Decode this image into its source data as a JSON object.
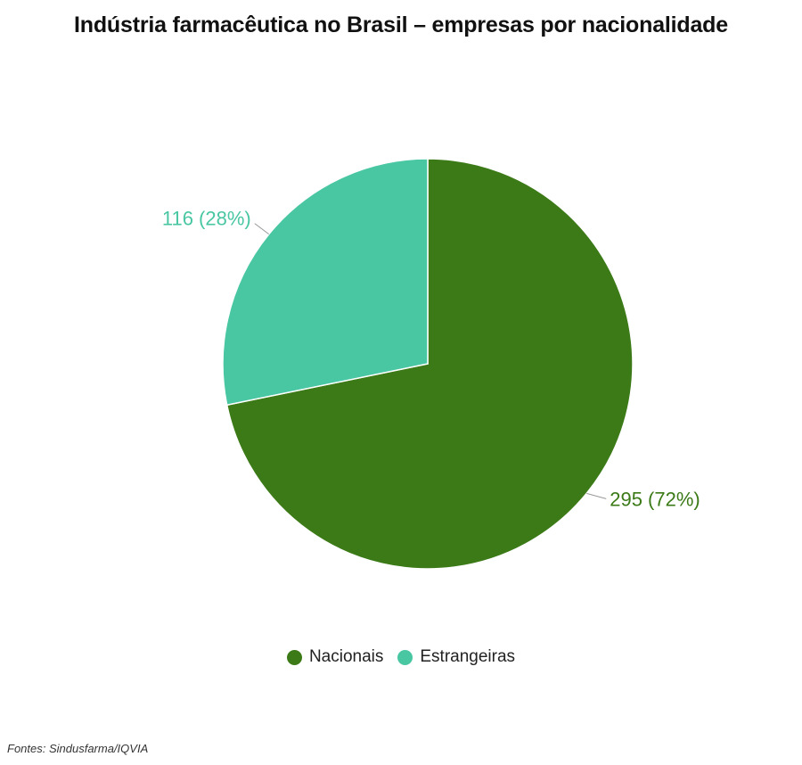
{
  "chart_data": {
    "type": "pie",
    "title": "Indústria farmacêutica no Brasil – empresas por nacionalidade",
    "slices": [
      {
        "name": "Nacionais",
        "value": 295,
        "percent": 72,
        "label": "295 (72%)",
        "color": "#3b7a17"
      },
      {
        "name": "Estrangeiras",
        "value": 116,
        "percent": 28,
        "label": "116 (28%)",
        "color": "#49c6a2"
      }
    ],
    "legend": {
      "placement": "bottom-center",
      "items": [
        {
          "label": "Nacionais",
          "color": "#3b7a17"
        },
        {
          "label": "Estrangeiras",
          "color": "#49c6a2"
        }
      ]
    }
  },
  "source": "Fontes: Sindusfarma/IQVIA"
}
